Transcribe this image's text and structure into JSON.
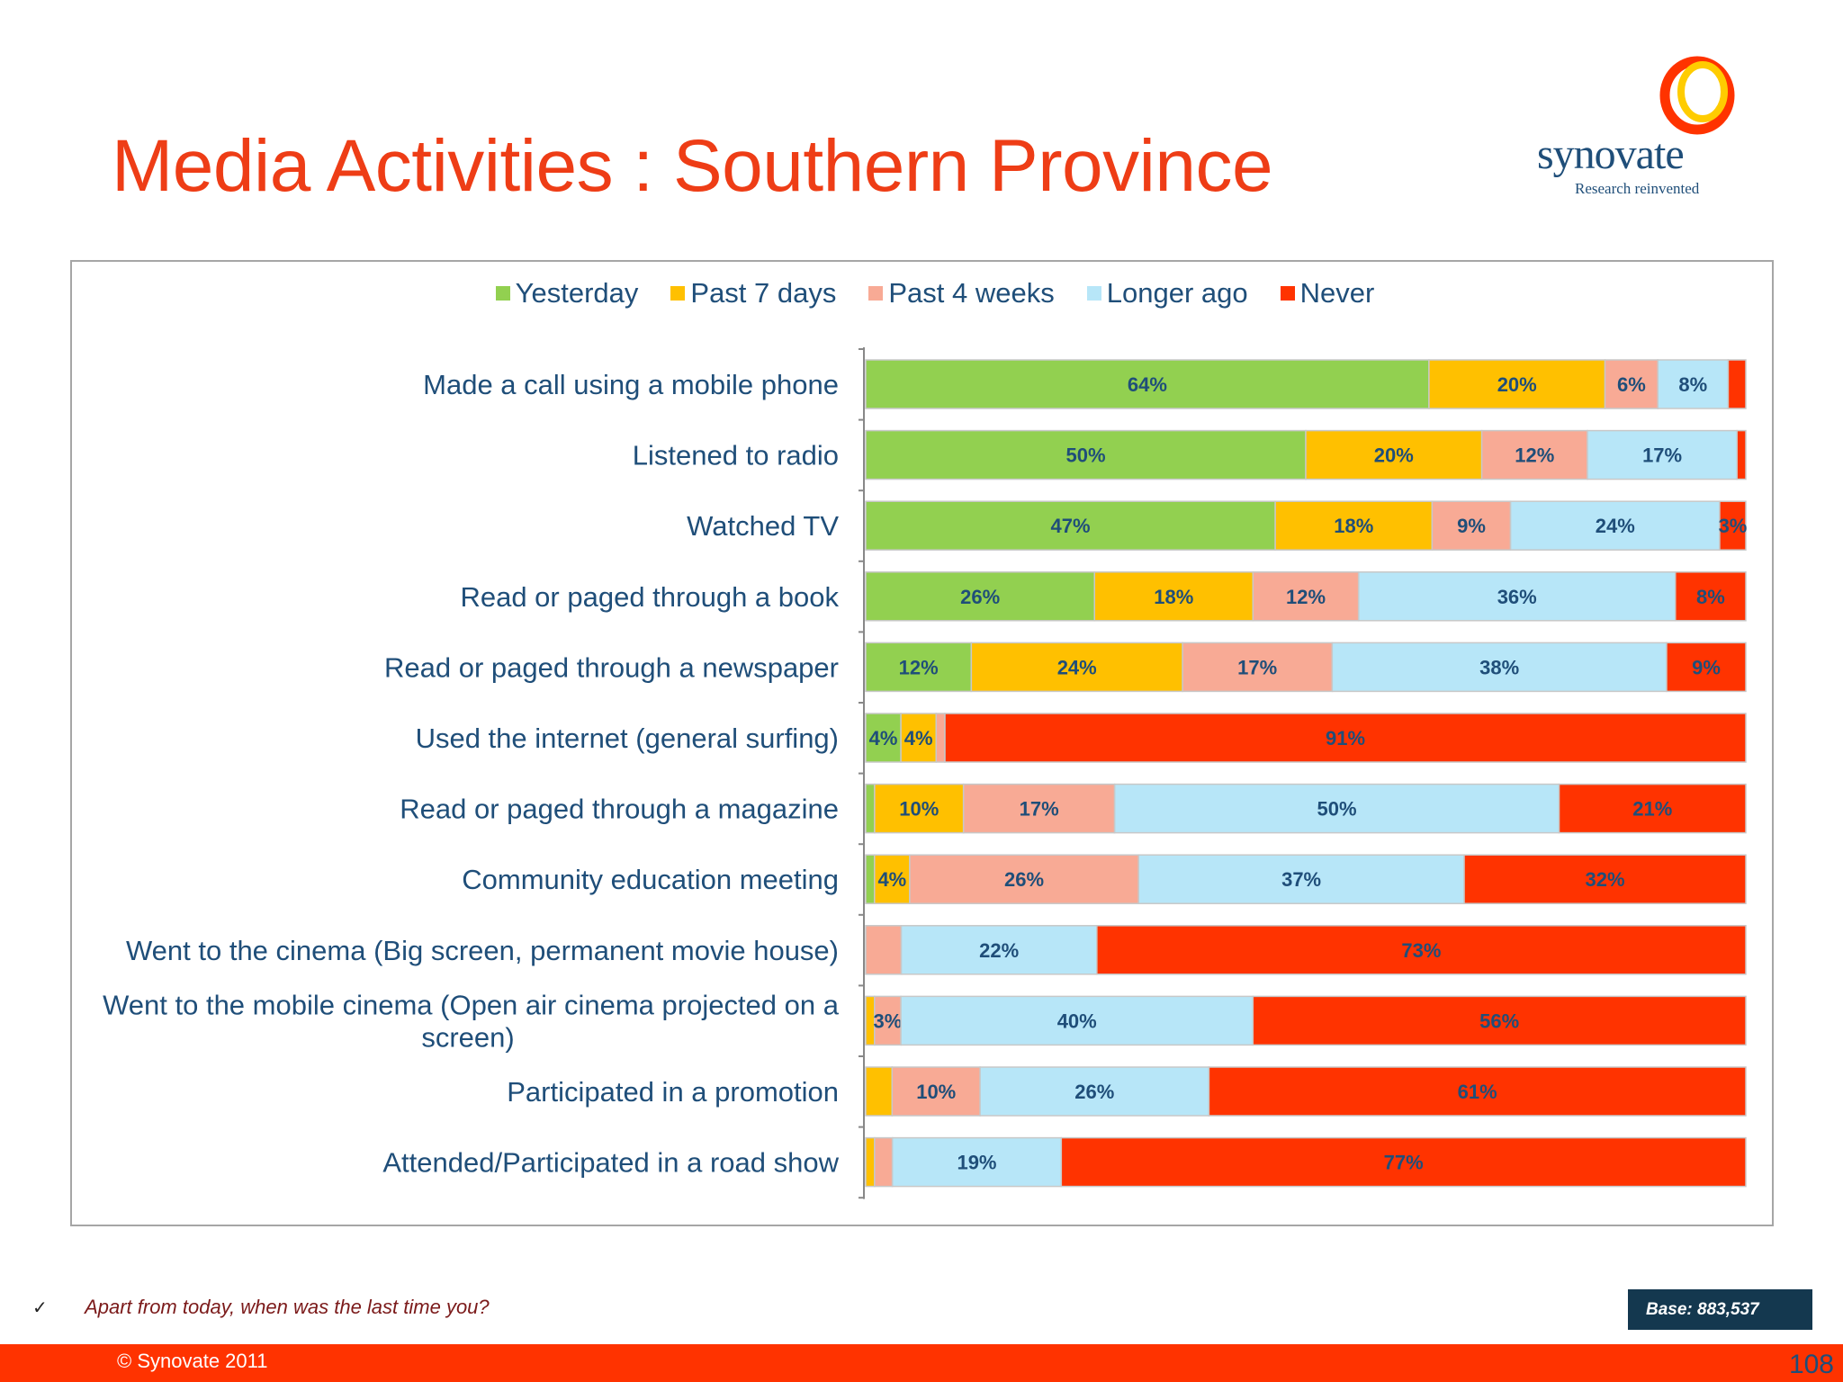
{
  "page": {
    "title": "Media Activities : Southern Province",
    "logo_word": "synovate",
    "logo_tag": "Research reinvented",
    "footnote_check": "✓",
    "footnote": "Apart from today, when was the last time you?",
    "base": "Base: 883,537",
    "copyright": "© Synovate 2011",
    "page_number": "108"
  },
  "colors": {
    "title": "#ee3d16",
    "footer_bar": "#ff3300",
    "base_box": "#14384f",
    "text": "#1f4e79"
  },
  "chart_data": {
    "type": "bar",
    "orientation": "horizontal",
    "stacked": true,
    "normalized": true,
    "xlim": [
      0,
      100
    ],
    "legend_position": "top",
    "categories": [
      "Made a call using a mobile phone",
      "Listened to radio",
      "Watched TV",
      "Read or paged through a book",
      "Read or paged through a newspaper",
      "Used the internet (general surfing)",
      "Read or paged through a magazine",
      "Community education meeting",
      "Went to the cinema (Big screen, permanent movie house)",
      "Went to the mobile cinema (Open air cinema projected on a screen)",
      "Participated in a promotion",
      "Attended/Participated in a road show"
    ],
    "category_lines": [
      [
        "Made a call using a mobile phone"
      ],
      [
        "Listened to radio"
      ],
      [
        "Watched TV"
      ],
      [
        "Read or paged through a book"
      ],
      [
        "Read or paged through a newspaper"
      ],
      [
        "Used the internet (general surfing)"
      ],
      [
        "Read or paged through a magazine"
      ],
      [
        "Community education meeting"
      ],
      [
        "Went to the cinema (Big screen, permanent movie house)"
      ],
      [
        "Went to the mobile cinema (Open air cinema projected on a",
        "screen)"
      ],
      [
        "Participated in a promotion"
      ],
      [
        "Attended/Participated in a road show"
      ]
    ],
    "series": [
      {
        "name": "Yesterday",
        "color": "#92d050",
        "values": [
          64,
          50,
          47,
          26,
          12,
          4,
          1,
          1,
          0,
          0,
          0,
          0
        ],
        "labels": [
          "64%",
          "50%",
          "47%",
          "26%",
          "12%",
          "4%",
          "",
          "",
          "",
          "",
          "",
          ""
        ]
      },
      {
        "name": "Past 7 days",
        "color": "#ffc000",
        "values": [
          20,
          20,
          18,
          18,
          24,
          4,
          10,
          4,
          0,
          1,
          3,
          1
        ],
        "labels": [
          "20%",
          "20%",
          "18%",
          "18%",
          "24%",
          "4%",
          "10%",
          "4%",
          "",
          "",
          "",
          ""
        ]
      },
      {
        "name": "Past 4 weeks",
        "color": "#f8aa95",
        "values": [
          6,
          12,
          9,
          12,
          17,
          1,
          17,
          26,
          4,
          3,
          10,
          2
        ],
        "labels": [
          "6%",
          "12%",
          "9%",
          "12%",
          "17%",
          "",
          "17%",
          "26%",
          "",
          "3%",
          "10%",
          ""
        ]
      },
      {
        "name": "Longer ago",
        "color": "#b7e6f8",
        "values": [
          8,
          17,
          24,
          36,
          38,
          0,
          50,
          37,
          22,
          40,
          26,
          19
        ],
        "labels": [
          "8%",
          "17%",
          "24%",
          "36%",
          "38%",
          "",
          "50%",
          "37%",
          "22%",
          "40%",
          "26%",
          "19%"
        ]
      },
      {
        "name": "Never",
        "color": "#ff3300",
        "values": [
          2,
          1,
          3,
          8,
          9,
          91,
          21,
          32,
          73,
          56,
          61,
          77
        ],
        "labels": [
          "",
          "",
          "3%",
          "8%",
          "9%",
          "91%",
          "21%",
          "32%",
          "73%",
          "56%",
          "61%",
          "77%"
        ]
      }
    ]
  }
}
